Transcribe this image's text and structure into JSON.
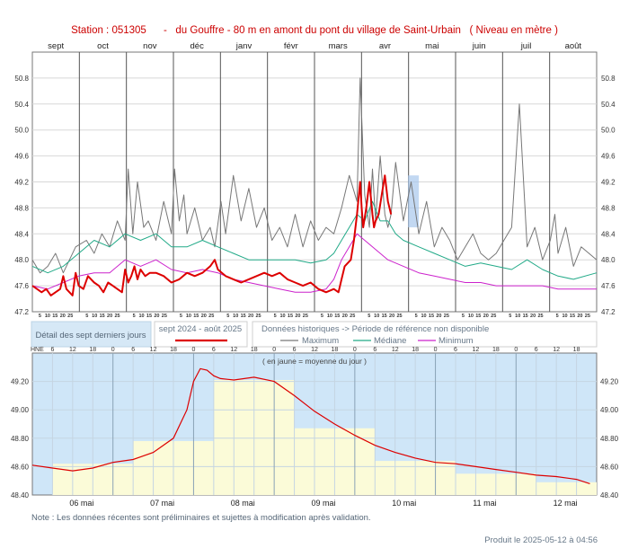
{
  "header": {
    "title": "Station : 051305      -   du Gouffre - 80 m en amont du pont du village de Saint-Urbain   ( Niveau en mètre )"
  },
  "colors": {
    "current": "#dd0000",
    "maximum": "#777777",
    "median": "#22aa88",
    "minimum": "#cc22cc",
    "detail_bg": "#cfe6f8",
    "daily_mean": "#fbfbd8",
    "highlight": "#a8c8ec"
  },
  "legend": {
    "recent_button": "Détail des sept derniers jours",
    "period_label": "sept 2024 - août 2025",
    "historic_label": "Données historiques -> Période de référence non disponible",
    "max_label": "Maximum",
    "median_label": "Médiane",
    "min_label": "Minimum"
  },
  "note": "Note : Les données récentes sont préliminaires et sujettes à modification après validation.",
  "produced": "Produit le 2025-05-12 à 04:56",
  "chart_data": [
    {
      "type": "line",
      "title": "",
      "ylim": [
        47.2,
        51.2
      ],
      "yticks": [
        "47.2",
        "47.6",
        "48.0",
        "48.4",
        "48.8",
        "49.2",
        "49.6",
        "50.0",
        "50.4",
        "50.8"
      ],
      "months": [
        "sept",
        "oct",
        "nov",
        "déc",
        "janv",
        "févr",
        "mars",
        "avr",
        "mai",
        "juin",
        "juil",
        "août"
      ],
      "minor_ticks": [
        "5",
        "10",
        "15",
        "20",
        "25"
      ],
      "series": [
        {
          "name": "Maximum",
          "x": [
            0,
            5,
            10,
            15,
            20,
            28,
            35,
            40,
            45,
            50,
            55,
            60,
            62,
            65,
            68,
            72,
            75,
            80,
            85,
            90,
            92,
            95,
            98,
            100,
            105,
            110,
            115,
            118,
            122,
            125,
            130,
            135,
            140,
            145,
            150,
            155,
            160,
            165,
            170,
            175,
            180,
            185,
            190,
            195,
            200,
            205,
            210,
            212,
            215,
            218,
            220,
            222,
            225,
            228,
            230,
            232,
            235,
            240,
            245,
            250,
            255,
            260,
            265,
            270,
            275,
            280,
            285,
            290,
            295,
            300,
            305,
            310,
            315,
            320,
            325,
            330,
            335,
            338,
            340,
            345,
            350,
            355,
            360,
            365
          ],
          "values": [
            48.0,
            47.8,
            47.9,
            48.1,
            47.8,
            48.2,
            48.3,
            48.1,
            48.4,
            48.2,
            48.6,
            48.3,
            49.4,
            48.4,
            49.2,
            48.5,
            48.6,
            48.3,
            48.9,
            48.4,
            49.4,
            48.6,
            49.0,
            48.4,
            48.8,
            48.3,
            48.5,
            48.2,
            48.9,
            48.4,
            49.3,
            48.6,
            49.1,
            48.5,
            48.8,
            48.3,
            48.5,
            48.2,
            48.7,
            48.2,
            48.6,
            48.3,
            48.5,
            48.4,
            48.8,
            49.3,
            48.9,
            50.8,
            49.0,
            48.5,
            49.4,
            48.6,
            49.6,
            48.7,
            48.5,
            48.7,
            49.5,
            48.6,
            49.2,
            48.4,
            48.9,
            48.2,
            48.5,
            48.3,
            48.0,
            48.2,
            48.4,
            48.1,
            48.0,
            48.1,
            48.3,
            48.5,
            50.4,
            48.2,
            48.5,
            48.0,
            48.3,
            48.7,
            48.1,
            48.5,
            47.9,
            48.2,
            48.1,
            48.0
          ]
        },
        {
          "name": "Médiane",
          "x": [
            0,
            10,
            20,
            30,
            40,
            50,
            60,
            70,
            80,
            90,
            100,
            110,
            120,
            130,
            140,
            150,
            160,
            170,
            180,
            190,
            195,
            200,
            205,
            210,
            215,
            220,
            225,
            230,
            235,
            240,
            250,
            260,
            270,
            280,
            290,
            300,
            310,
            320,
            330,
            340,
            350,
            365
          ],
          "values": [
            47.9,
            47.8,
            47.9,
            48.1,
            48.3,
            48.2,
            48.4,
            48.3,
            48.4,
            48.2,
            48.2,
            48.3,
            48.2,
            48.1,
            48.0,
            48.0,
            48.0,
            48.0,
            47.95,
            48.0,
            48.1,
            48.3,
            48.5,
            48.7,
            48.6,
            48.9,
            48.6,
            48.6,
            48.4,
            48.3,
            48.2,
            48.1,
            48.0,
            47.9,
            47.95,
            47.9,
            47.85,
            48.0,
            47.85,
            47.75,
            47.7,
            47.8
          ]
        },
        {
          "name": "Minimum",
          "x": [
            0,
            10,
            20,
            30,
            40,
            50,
            60,
            70,
            80,
            90,
            100,
            110,
            120,
            130,
            140,
            150,
            160,
            170,
            180,
            190,
            195,
            200,
            205,
            210,
            215,
            220,
            225,
            230,
            235,
            240,
            250,
            260,
            270,
            280,
            290,
            300,
            310,
            320,
            330,
            340,
            350,
            365
          ],
          "values": [
            47.6,
            47.55,
            47.65,
            47.75,
            47.8,
            47.8,
            48.0,
            47.9,
            48.0,
            47.85,
            47.8,
            47.85,
            47.8,
            47.7,
            47.65,
            47.6,
            47.55,
            47.5,
            47.5,
            47.55,
            47.7,
            48.0,
            48.2,
            48.4,
            48.3,
            48.2,
            48.1,
            48.0,
            47.95,
            47.9,
            47.8,
            47.75,
            47.7,
            47.65,
            47.65,
            47.6,
            47.6,
            47.6,
            47.6,
            47.55,
            47.55,
            47.55
          ]
        },
        {
          "name": "sept 2024 - août 2025",
          "x": [
            0,
            3,
            6,
            9,
            12,
            15,
            18,
            20,
            22,
            24,
            26,
            28,
            30,
            33,
            36,
            40,
            43,
            46,
            49,
            52,
            55,
            58,
            60,
            62,
            64,
            66,
            68,
            70,
            73,
            76,
            80,
            85,
            90,
            95,
            100,
            105,
            110,
            115,
            118,
            120,
            125,
            130,
            135,
            140,
            145,
            150,
            155,
            160,
            165,
            170,
            175,
            180,
            185,
            190,
            195,
            198,
            200,
            202,
            204,
            206,
            208,
            210,
            212,
            213,
            214,
            216,
            218,
            220,
            221,
            222,
            224,
            226,
            228,
            230,
            232
          ],
          "values": [
            47.6,
            47.55,
            47.5,
            47.55,
            47.45,
            47.5,
            47.55,
            47.75,
            47.55,
            47.5,
            47.45,
            47.8,
            47.6,
            47.55,
            47.75,
            47.65,
            47.6,
            47.5,
            47.65,
            47.6,
            47.55,
            47.5,
            47.85,
            47.65,
            47.75,
            47.9,
            47.7,
            47.85,
            47.75,
            47.8,
            47.8,
            47.75,
            47.65,
            47.7,
            47.8,
            47.75,
            47.8,
            47.9,
            48.0,
            47.85,
            47.75,
            47.7,
            47.65,
            47.7,
            47.75,
            47.8,
            47.75,
            47.8,
            47.7,
            47.65,
            47.6,
            47.65,
            47.55,
            47.5,
            47.55,
            47.5,
            47.7,
            47.9,
            47.95,
            48.0,
            48.3,
            48.7,
            49.2,
            48.8,
            48.5,
            48.8,
            49.2,
            48.7,
            48.5,
            48.6,
            48.7,
            49.0,
            49.3,
            48.9,
            48.7
          ]
        }
      ]
    },
    {
      "type": "line",
      "title": "( en jaune = moyenne du jour )",
      "xlabel": "HNE",
      "ylim": [
        48.4,
        49.4
      ],
      "yticks": [
        "48.40",
        "48.60",
        "48.80",
        "49.00",
        "49.20"
      ],
      "hour_ticks": [
        "6",
        "12",
        "18",
        "0",
        "6",
        "12",
        "18",
        "0",
        "6",
        "12",
        "18",
        "0",
        "6",
        "12",
        "18",
        "0",
        "6",
        "12",
        "18",
        "0",
        "6",
        "12",
        "18",
        "0",
        "6",
        "12",
        "18"
      ],
      "days": [
        "06 mai",
        "07 mai",
        "08 mai",
        "09 mai",
        "10 mai",
        "11 mai",
        "12 mai"
      ],
      "daily_means": [
        48.62,
        48.78,
        49.21,
        48.87,
        48.64,
        48.55,
        48.49
      ],
      "series": [
        {
          "name": "Niveau",
          "x": [
            0,
            6,
            12,
            18,
            24,
            30,
            36,
            42,
            46,
            48,
            50,
            52,
            54,
            56,
            60,
            66,
            72,
            78,
            84,
            90,
            96,
            102,
            108,
            114,
            120,
            126,
            132,
            138,
            144,
            150,
            156,
            162,
            166
          ],
          "values": [
            48.61,
            48.59,
            48.57,
            48.59,
            48.63,
            48.65,
            48.7,
            48.8,
            49.0,
            49.2,
            49.29,
            49.28,
            49.24,
            49.22,
            49.21,
            49.23,
            49.2,
            49.1,
            48.99,
            48.9,
            48.82,
            48.75,
            48.7,
            48.66,
            48.63,
            48.62,
            48.6,
            48.58,
            48.56,
            48.54,
            48.53,
            48.51,
            48.48
          ]
        }
      ]
    }
  ]
}
